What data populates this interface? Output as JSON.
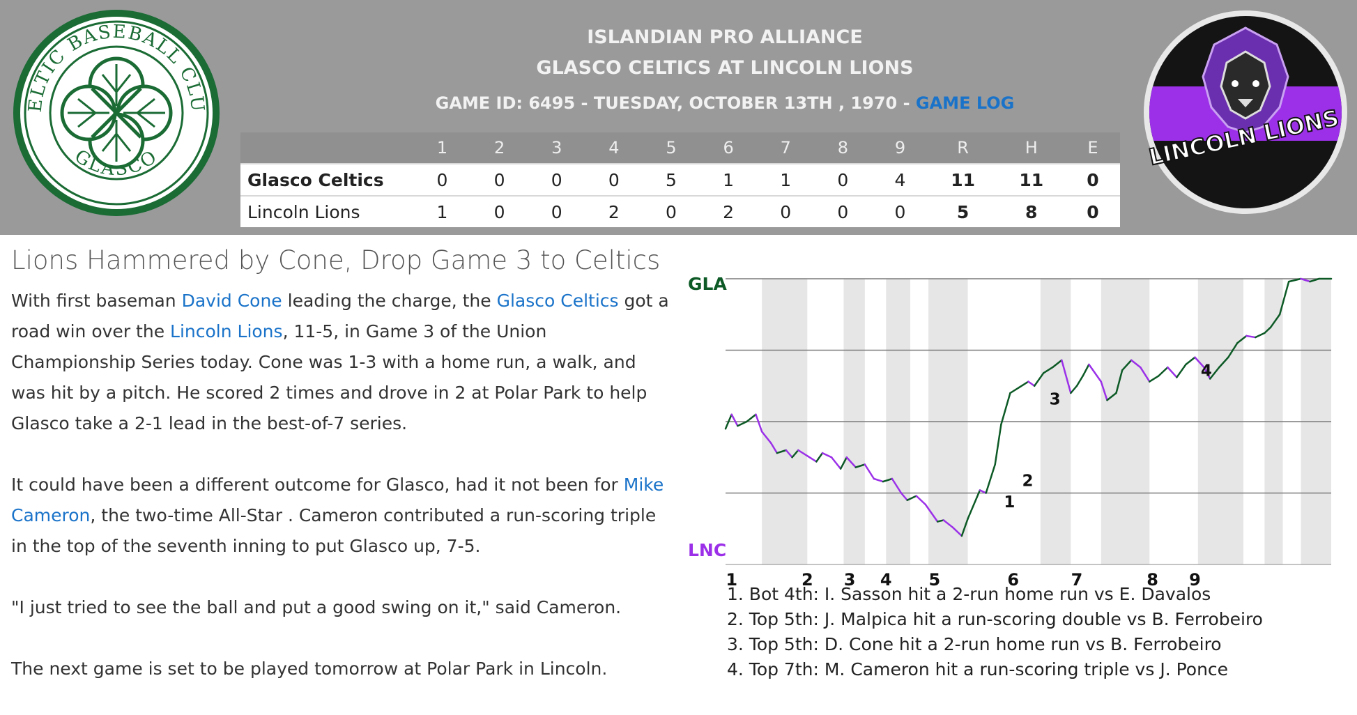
{
  "header": {
    "league": "ISLANDIAN PRO ALLIANCE",
    "matchup": "GLASCO CELTICS AT LINCOLN LIONS",
    "game_info": "GAME ID: 6495 - TUESDAY, OCTOBER 13TH , 1970 - ",
    "game_log_link": "GAME LOG",
    "away_logo_text": "CELTIC BASEBALL CLUB · GLASCO",
    "home_logo_text": "LINCOLN LIONS"
  },
  "linescore": {
    "columns": [
      "1",
      "2",
      "3",
      "4",
      "5",
      "6",
      "7",
      "8",
      "9",
      "R",
      "H",
      "E"
    ],
    "rows": [
      {
        "team": "Glasco Celtics",
        "innings": [
          "0",
          "0",
          "0",
          "0",
          "5",
          "1",
          "1",
          "0",
          "4"
        ],
        "r": "11",
        "h": "11",
        "e": "0"
      },
      {
        "team": "Lincoln Lions",
        "innings": [
          "1",
          "0",
          "0",
          "2",
          "0",
          "2",
          "0",
          "0",
          "0"
        ],
        "r": "5",
        "h": "8",
        "e": "0"
      }
    ]
  },
  "article": {
    "title": "Lions Hammered by Cone, Drop Game 3 to Celtics",
    "p1_a": "With first baseman ",
    "p1_link1": "David Cone",
    "p1_b": " leading the charge, the ",
    "p1_link2": "Glasco Celtics",
    "p1_c": " got a road win over the ",
    "p1_link3": "Lincoln Lions",
    "p1_d": ", 11-5, in Game 3 of the Union Championship Series today. Cone was 1-3 with a home run, a walk, and was hit by a pitch. He scored 2 times and drove in 2 at Polar Park to help Glasco take a 2-1 lead in the best-of-7 series.",
    "p2_a": "It could have been a different outcome for Glasco, had it not been for ",
    "p2_link": "Mike Cameron",
    "p2_b": ", the two-time All-Star . Cameron contributed a run-scoring triple in the top of the seventh inning to put Glasco up, 7-5.",
    "p3": "\"I just tried to see the ball and put a good swing on it,\" said Cameron.",
    "p4": "The next game is set to be played tomorrow at Polar Park in Lincoln."
  },
  "chart_data": {
    "type": "line",
    "top_label": "GLA",
    "bottom_label": "LNC",
    "x_labels": [
      "1",
      "2",
      "3",
      "4",
      "5",
      "6",
      "7",
      "8",
      "9"
    ],
    "ylim": [
      -1,
      1
    ],
    "grid": true,
    "away_color": "#0d5a26",
    "home_color": "#9b30e8",
    "x": [
      0,
      0.1,
      0.2,
      0.35,
      0.5,
      0.6,
      0.75,
      0.85,
      1.0,
      1.1,
      1.2,
      1.35,
      1.5,
      1.6,
      1.75,
      1.9,
      2.0,
      2.15,
      2.3,
      2.45,
      2.6,
      2.75,
      2.9,
      3.0,
      3.15,
      3.3,
      3.5,
      3.6,
      3.75,
      3.9,
      4.0,
      4.2,
      4.3,
      4.45,
      4.55,
      4.7,
      4.85,
      5.0,
      5.1,
      5.25,
      5.4,
      5.55,
      5.7,
      5.8,
      5.9,
      6.0,
      6.2,
      6.3,
      6.45,
      6.55,
      6.7,
      6.85,
      7.0,
      7.15,
      7.3,
      7.45,
      7.6,
      7.75,
      7.9,
      8.0,
      8.15,
      8.3,
      8.45,
      8.6,
      8.75,
      8.9,
      9.0,
      9.15,
      9.3,
      9.5,
      9.65,
      9.8,
      10.0
    ],
    "y": [
      -0.05,
      0.05,
      -0.03,
      0.0,
      0.05,
      -0.07,
      -0.15,
      -0.22,
      -0.2,
      -0.25,
      -0.2,
      -0.24,
      -0.28,
      -0.22,
      -0.25,
      -0.33,
      -0.25,
      -0.32,
      -0.3,
      -0.4,
      -0.42,
      -0.4,
      -0.5,
      -0.55,
      -0.52,
      -0.58,
      -0.7,
      -0.69,
      -0.74,
      -0.8,
      -0.68,
      -0.48,
      -0.5,
      -0.3,
      -0.02,
      0.2,
      0.24,
      0.28,
      0.25,
      0.34,
      0.38,
      0.43,
      0.2,
      0.25,
      0.32,
      0.4,
      0.28,
      0.15,
      0.2,
      0.36,
      0.43,
      0.38,
      0.28,
      0.32,
      0.38,
      0.31,
      0.4,
      0.45,
      0.38,
      0.3,
      0.38,
      0.45,
      0.55,
      0.6,
      0.59,
      0.62,
      0.66,
      0.75,
      0.98,
      1.0,
      0.98,
      1.0,
      1.0
    ],
    "annotations": [
      {
        "label": "1",
        "x": 4.55,
        "y": -0.6
      },
      {
        "label": "2",
        "x": 4.85,
        "y": -0.45
      },
      {
        "label": "3",
        "x": 5.3,
        "y": 0.12
      },
      {
        "label": "4",
        "x": 7.8,
        "y": 0.32
      }
    ],
    "notes": [
      "1. Bot 4th: I. Sasson hit a 2-run home run vs E. Davalos",
      "2. Top 5th: J. Malpica hit a run-scoring double vs B. Ferrobeiro",
      "3. Top 5th: D. Cone hit a 2-run home run vs B. Ferrobeiro",
      "4. Top 7th: M. Cameron hit a run-scoring triple vs J. Ponce"
    ]
  }
}
